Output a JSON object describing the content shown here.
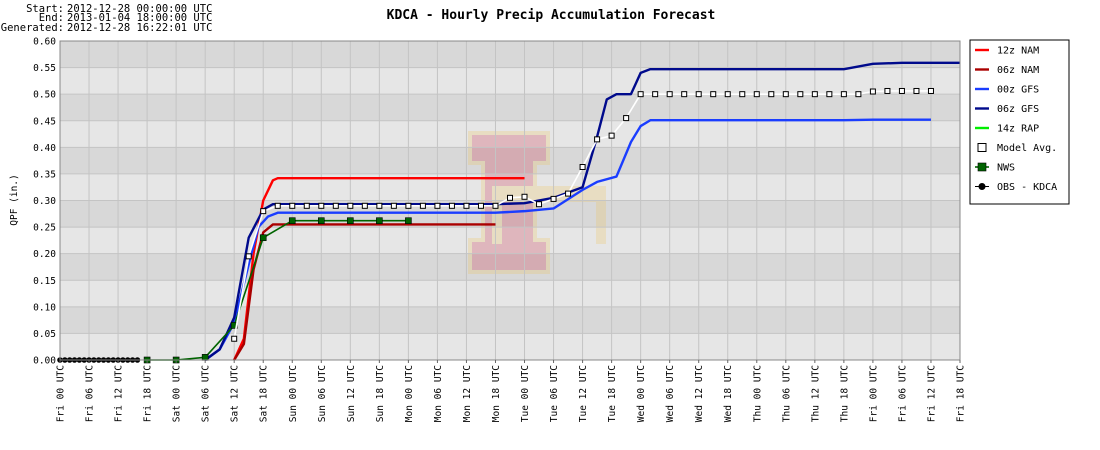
{
  "meta": {
    "start_label": "Start:",
    "start_value": "2012-12-28 00:00:00 UTC",
    "end_label": "End:",
    "end_value": "2013-01-04 18:00:00 UTC",
    "generated_label": "Generated:",
    "generated_value": "2012-12-28 16:22:01 UTC"
  },
  "chart_data": {
    "type": "line",
    "title": "KDCA - Hourly Precip Accumulation Forecast",
    "ylabel": "QPF (in.)",
    "xlabel": "",
    "ylim": [
      0,
      0.6
    ],
    "xlim": [
      "2012-12-28 00:00",
      "2013-01-04 18:00"
    ],
    "yticks": [
      "0.00",
      "0.05",
      "0.10",
      "0.15",
      "0.20",
      "0.25",
      "0.30",
      "0.35",
      "0.40",
      "0.45",
      "0.50",
      "0.55",
      "0.60"
    ],
    "xticks": [
      "Fri 00 UTC",
      "Fri 06 UTC",
      "Fri 12 UTC",
      "Fri 18 UTC",
      "Sat 00 UTC",
      "Sat 06 UTC",
      "Sat 12 UTC",
      "Sat 18 UTC",
      "Sun 00 UTC",
      "Sun 06 UTC",
      "Sun 12 UTC",
      "Sun 18 UTC",
      "Mon 00 UTC",
      "Mon 06 UTC",
      "Mon 12 UTC",
      "Mon 18 UTC",
      "Tue 00 UTC",
      "Tue 06 UTC",
      "Tue 12 UTC",
      "Tue 18 UTC",
      "Wed 00 UTC",
      "Wed 06 UTC",
      "Wed 12 UTC",
      "Wed 18 UTC",
      "Thu 00 UTC",
      "Thu 06 UTC",
      "Thu 12 UTC",
      "Thu 18 UTC",
      "Fri 00 UTC",
      "Fri 06 UTC",
      "Fri 12 UTC",
      "Fri 18 UTC"
    ],
    "grid": true,
    "band_colors": [
      "#d8d8d8",
      "#e6e6e6"
    ],
    "legend_position": "right",
    "series": [
      {
        "name": "12z NAM",
        "color": "#ff0000",
        "marker": "none",
        "points": [
          [
            "2012-12-29 12:00",
            0
          ],
          [
            "2012-12-29 14:00",
            0.04
          ],
          [
            "2012-12-29 16:00",
            0.2
          ],
          [
            "2012-12-29 18:00",
            0.3
          ],
          [
            "2012-12-29 20:00",
            0.338
          ],
          [
            "2012-12-29 21:00",
            0.342
          ],
          [
            "2012-12-31 12:00",
            0.342
          ],
          [
            "2013-01-01 00:00",
            0.342
          ]
        ]
      },
      {
        "name": "06z NAM",
        "color": "#aa0000",
        "marker": "none",
        "points": [
          [
            "2012-12-29 12:00",
            0
          ],
          [
            "2012-12-29 14:00",
            0.03
          ],
          [
            "2012-12-29 16:00",
            0.17
          ],
          [
            "2012-12-29 18:00",
            0.24
          ],
          [
            "2012-12-29 20:00",
            0.255
          ],
          [
            "2012-12-30 12:00",
            0.255
          ],
          [
            "2012-12-31 18:00",
            0.255
          ]
        ]
      },
      {
        "name": "00z GFS",
        "color": "#1a3dff",
        "marker": "none",
        "points": [
          [
            "2012-12-29 06:00",
            0
          ],
          [
            "2012-12-29 09:00",
            0.02
          ],
          [
            "2012-12-29 12:00",
            0.07
          ],
          [
            "2012-12-29 15:00",
            0.18
          ],
          [
            "2012-12-29 17:00",
            0.25
          ],
          [
            "2012-12-29 19:00",
            0.27
          ],
          [
            "2012-12-29 21:00",
            0.277
          ],
          [
            "2012-12-31 12:00",
            0.277
          ],
          [
            "2012-12-31 18:00",
            0.277
          ],
          [
            "2013-01-01 00:00",
            0.28
          ],
          [
            "2013-01-01 06:00",
            0.285
          ],
          [
            "2013-01-01 12:00",
            0.32
          ],
          [
            "2013-01-01 15:00",
            0.335
          ],
          [
            "2013-01-01 19:00",
            0.345
          ],
          [
            "2013-01-01 22:00",
            0.41
          ],
          [
            "2013-01-02 00:00",
            0.44
          ],
          [
            "2013-01-02 02:00",
            0.451
          ],
          [
            "2013-01-03 18:00",
            0.451
          ],
          [
            "2013-01-04 00:00",
            0.452
          ],
          [
            "2013-01-04 12:00",
            0.452
          ]
        ]
      },
      {
        "name": "06z GFS",
        "color": "#000a8c",
        "marker": "none",
        "points": [
          [
            "2012-12-29 06:00",
            0
          ],
          [
            "2012-12-29 09:00",
            0.02
          ],
          [
            "2012-12-29 12:00",
            0.08
          ],
          [
            "2012-12-29 15:00",
            0.23
          ],
          [
            "2012-12-29 18:00",
            0.283
          ],
          [
            "2012-12-29 20:00",
            0.293
          ],
          [
            "2012-12-31 18:00",
            0.293
          ],
          [
            "2013-01-01 00:00",
            0.295
          ],
          [
            "2013-01-01 06:00",
            0.305
          ],
          [
            "2013-01-01 12:00",
            0.325
          ],
          [
            "2013-01-01 15:00",
            0.42
          ],
          [
            "2013-01-01 17:00",
            0.49
          ],
          [
            "2013-01-01 19:00",
            0.5
          ],
          [
            "2013-01-01 22:00",
            0.5
          ],
          [
            "2013-01-02 00:00",
            0.54
          ],
          [
            "2013-01-02 02:00",
            0.547
          ],
          [
            "2013-01-03 18:00",
            0.547
          ],
          [
            "2013-01-04 00:00",
            0.557
          ],
          [
            "2013-01-04 06:00",
            0.559
          ],
          [
            "2013-01-04 18:00",
            0.559
          ]
        ]
      },
      {
        "name": "14z RAP",
        "color": "#00ee00",
        "marker": "none",
        "points": []
      },
      {
        "name": "Model Avg.",
        "color": "#ffffff",
        "marker": "open-square",
        "points": [
          [
            "2012-12-29 12:00",
            0.04
          ],
          [
            "2012-12-29 15:00",
            0.195
          ],
          [
            "2012-12-29 18:00",
            0.28
          ],
          [
            "2012-12-29 21:00",
            0.29
          ],
          [
            "2012-12-30 00:00",
            0.29
          ],
          [
            "2012-12-30 03:00",
            0.29
          ],
          [
            "2012-12-30 06:00",
            0.29
          ],
          [
            "2012-12-30 09:00",
            0.29
          ],
          [
            "2012-12-30 12:00",
            0.29
          ],
          [
            "2012-12-30 15:00",
            0.29
          ],
          [
            "2012-12-30 18:00",
            0.29
          ],
          [
            "2012-12-30 21:00",
            0.29
          ],
          [
            "2012-12-31 00:00",
            0.29
          ],
          [
            "2012-12-31 03:00",
            0.29
          ],
          [
            "2012-12-31 06:00",
            0.29
          ],
          [
            "2012-12-31 09:00",
            0.29
          ],
          [
            "2012-12-31 12:00",
            0.29
          ],
          [
            "2012-12-31 15:00",
            0.29
          ],
          [
            "2012-12-31 18:00",
            0.29
          ],
          [
            "2012-12-31 21:00",
            0.305
          ],
          [
            "2013-01-01 00:00",
            0.307
          ],
          [
            "2013-01-01 03:00",
            0.293
          ],
          [
            "2013-01-01 06:00",
            0.303
          ],
          [
            "2013-01-01 09:00",
            0.313
          ],
          [
            "2013-01-01 12:00",
            0.363
          ],
          [
            "2013-01-01 15:00",
            0.415
          ],
          [
            "2013-01-01 18:00",
            0.422
          ],
          [
            "2013-01-01 21:00",
            0.455
          ],
          [
            "2013-01-02 00:00",
            0.5
          ],
          [
            "2013-01-02 03:00",
            0.5
          ],
          [
            "2013-01-02 06:00",
            0.5
          ],
          [
            "2013-01-02 09:00",
            0.5
          ],
          [
            "2013-01-02 12:00",
            0.5
          ],
          [
            "2013-01-02 15:00",
            0.5
          ],
          [
            "2013-01-02 18:00",
            0.5
          ],
          [
            "2013-01-02 21:00",
            0.5
          ],
          [
            "2013-01-03 00:00",
            0.5
          ],
          [
            "2013-01-03 03:00",
            0.5
          ],
          [
            "2013-01-03 06:00",
            0.5
          ],
          [
            "2013-01-03 09:00",
            0.5
          ],
          [
            "2013-01-03 12:00",
            0.5
          ],
          [
            "2013-01-03 15:00",
            0.5
          ],
          [
            "2013-01-03 18:00",
            0.5
          ],
          [
            "2013-01-03 21:00",
            0.5
          ],
          [
            "2013-01-04 00:00",
            0.505
          ],
          [
            "2013-01-04 03:00",
            0.506
          ],
          [
            "2013-01-04 06:00",
            0.506
          ],
          [
            "2013-01-04 09:00",
            0.506
          ],
          [
            "2013-01-04 12:00",
            0.506
          ]
        ]
      },
      {
        "name": "NWS",
        "color": "#006400",
        "marker": "filled-square",
        "points": [
          [
            "2012-12-28 18:00",
            0
          ],
          [
            "2012-12-29 00:00",
            0
          ],
          [
            "2012-12-29 06:00",
            0.005
          ],
          [
            "2012-12-29 12:00",
            0.065
          ],
          [
            "2012-12-29 18:00",
            0.23
          ],
          [
            "2012-12-30 00:00",
            0.262
          ],
          [
            "2012-12-30 06:00",
            0.262
          ],
          [
            "2012-12-30 12:00",
            0.262
          ],
          [
            "2012-12-30 18:00",
            0.262
          ],
          [
            "2012-12-31 00:00",
            0.262
          ]
        ]
      },
      {
        "name": "OBS - KDCA",
        "color": "#000000",
        "marker": "circle",
        "points": [
          [
            "2012-12-28 00:00",
            0
          ],
          [
            "2012-12-28 01:00",
            0
          ],
          [
            "2012-12-28 02:00",
            0
          ],
          [
            "2012-12-28 03:00",
            0
          ],
          [
            "2012-12-28 04:00",
            0
          ],
          [
            "2012-12-28 05:00",
            0
          ],
          [
            "2012-12-28 06:00",
            0
          ],
          [
            "2012-12-28 07:00",
            0
          ],
          [
            "2012-12-28 08:00",
            0
          ],
          [
            "2012-12-28 09:00",
            0
          ],
          [
            "2012-12-28 10:00",
            0
          ],
          [
            "2012-12-28 11:00",
            0
          ],
          [
            "2012-12-28 12:00",
            0
          ],
          [
            "2012-12-28 13:00",
            0
          ],
          [
            "2012-12-28 14:00",
            0
          ],
          [
            "2012-12-28 15:00",
            0
          ],
          [
            "2012-12-28 16:00",
            0
          ]
        ]
      }
    ]
  }
}
